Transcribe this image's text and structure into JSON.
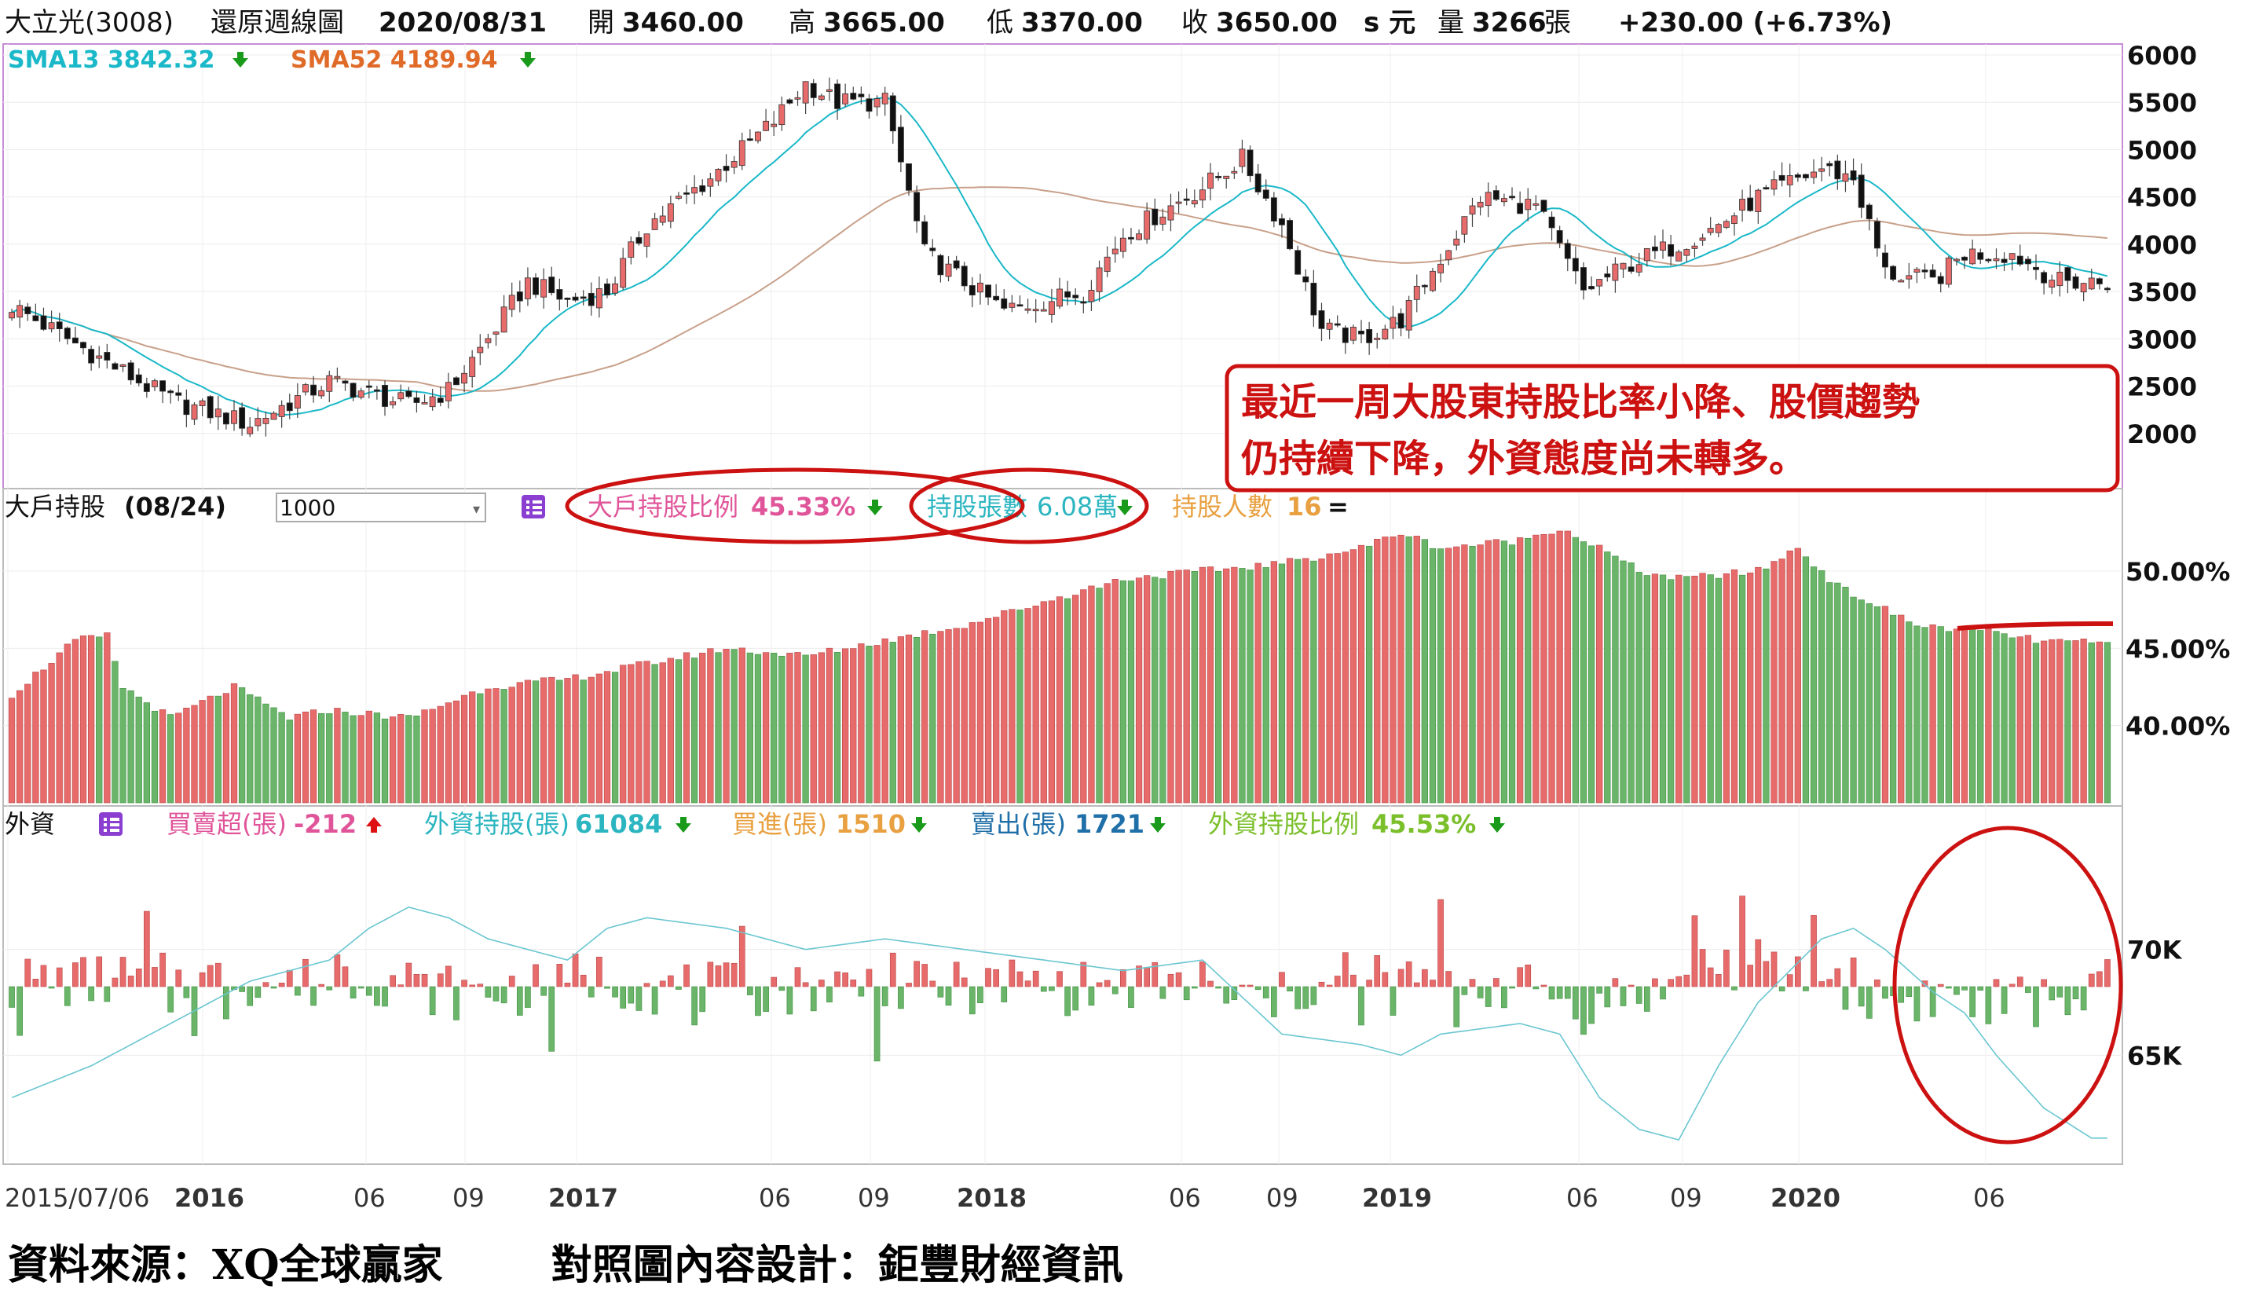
{
  "header": {
    "stock_name": "大立光(3008)",
    "chart_kind": "還原週線圖",
    "date": "2020/08/31",
    "open_label": "開",
    "open": "3460.00",
    "high_label": "高",
    "high": "3665.00",
    "low_label": "低",
    "low": "3370.00",
    "close_label": "收",
    "close": "3650.00",
    "close_unit": "s 元",
    "volume_label": "量",
    "volume": "3266",
    "volume_unit": "張",
    "change": "+230.00 (+6.73%)"
  },
  "price_panel": {
    "sma13_label": "SMA13 3842.32",
    "sma52_label": "SMA52 4189.94",
    "y_ticks": [
      "6000",
      "5500",
      "5000",
      "4500",
      "4000",
      "3500",
      "3000",
      "2500",
      "2000"
    ],
    "annotation_line1": "最近一周大股東持股比率小降、股價趨勢",
    "annotation_line2": "仍持續下降，外資態度尚未轉多。"
  },
  "holder_panel": {
    "title": "大戶持股",
    "date": "(08/24)",
    "threshold_input": "1000",
    "ratio_label": "大戶持股比例",
    "ratio_value": "45.33%",
    "shares_label": "持股張數",
    "shares_value": "6.08萬",
    "count_label": "持股人數",
    "count_value": "16",
    "count_trend": "=",
    "y_ticks": [
      "50.00%",
      "45.00%",
      "40.00%"
    ]
  },
  "foreign_panel": {
    "title": "外資",
    "net_label": "買賣超(張)",
    "net_value": "-212",
    "holding_label": "外資持股(張)",
    "holding_value": "61084",
    "buy_label": "買進(張)",
    "buy_value": "1510",
    "sell_label": "賣出(張)",
    "sell_value": "1721",
    "ratio_label": "外資持股比例",
    "ratio_value": "45.53%",
    "y_ticks": [
      "70K",
      "65K"
    ]
  },
  "x_axis": {
    "labels": [
      "2015/07/06",
      "2016",
      "06",
      "09",
      "2017",
      "06",
      "09",
      "2018",
      "06",
      "09",
      "2019",
      "06",
      "09",
      "2020",
      "06"
    ]
  },
  "footer": {
    "source": "資料來源：XQ全球贏家",
    "design": "對照圖內容設計：鉅豐財經資訊"
  },
  "colors": {
    "up": "#e86b6b",
    "down": "#6ab56a",
    "sma13": "#1ab8c8",
    "sma52": "#c8a08a",
    "annotation": "#cc1111",
    "ratio_text": "#e0559a",
    "shares_text": "#2bb5c0",
    "count_text": "#e8a040",
    "arrow_down": "#1a9a1a",
    "arrow_up": "#dd1111"
  },
  "chart_data": [
    {
      "type": "candlestick",
      "title": "大立光(3008) 還原週線圖",
      "ylim": [
        1500,
        6000
      ],
      "x_range": [
        "2015/07/06",
        "2020/08/31"
      ],
      "series": [
        {
          "name": "SMA13",
          "last": 3842.32
        },
        {
          "name": "SMA52",
          "last": 4189.94
        }
      ],
      "candle_path": [
        [
          0,
          3350
        ],
        [
          10,
          2850
        ],
        [
          20,
          2350
        ],
        [
          30,
          2100
        ],
        [
          40,
          2550
        ],
        [
          50,
          2300
        ],
        [
          55,
          2450
        ],
        [
          60,
          3000
        ],
        [
          65,
          3600
        ],
        [
          70,
          3400
        ],
        [
          75,
          3500
        ],
        [
          80,
          4200
        ],
        [
          88,
          4700
        ],
        [
          96,
          5300
        ],
        [
          100,
          5700
        ],
        [
          104,
          5500
        ],
        [
          110,
          5500
        ],
        [
          115,
          3900
        ],
        [
          125,
          3300
        ],
        [
          135,
          3500
        ],
        [
          140,
          4100
        ],
        [
          150,
          4600
        ],
        [
          155,
          4900
        ],
        [
          160,
          4200
        ],
        [
          165,
          3100
        ],
        [
          170,
          3000
        ],
        [
          175,
          3200
        ],
        [
          185,
          4500
        ],
        [
          192,
          4400
        ],
        [
          198,
          3500
        ],
        [
          204,
          3800
        ],
        [
          210,
          4000
        ],
        [
          215,
          4200
        ],
        [
          220,
          4500
        ],
        [
          228,
          4800
        ],
        [
          232,
          4700
        ],
        [
          236,
          3700
        ],
        [
          242,
          3600
        ],
        [
          246,
          3900
        ],
        [
          252,
          3900
        ],
        [
          258,
          3600
        ]
      ],
      "last_candle": {
        "date": "2020/08/31",
        "open": 3460,
        "high": 3665,
        "low": 3370,
        "close": 3650
      }
    },
    {
      "type": "bar",
      "title": "大戶持股",
      "ylabel": "大戶持股比例",
      "ylim": [
        35,
        53
      ],
      "path": [
        [
          0,
          42.0
        ],
        [
          8,
          45.5
        ],
        [
          12,
          45.8
        ],
        [
          14,
          42.5
        ],
        [
          20,
          40.5
        ],
        [
          28,
          42.5
        ],
        [
          35,
          40.5
        ],
        [
          40,
          41.0
        ],
        [
          50,
          40.5
        ],
        [
          60,
          42.5
        ],
        [
          70,
          43.0
        ],
        [
          80,
          44.0
        ],
        [
          90,
          45.0
        ],
        [
          100,
          44.5
        ],
        [
          110,
          45.5
        ],
        [
          120,
          46.5
        ],
        [
          130,
          48.0
        ],
        [
          140,
          49.5
        ],
        [
          150,
          50.0
        ],
        [
          160,
          50.5
        ],
        [
          170,
          51.5
        ],
        [
          175,
          52.5
        ],
        [
          180,
          51.5
        ],
        [
          190,
          52.0
        ],
        [
          195,
          52.8
        ],
        [
          200,
          51.5
        ],
        [
          205,
          50.0
        ],
        [
          210,
          49.5
        ],
        [
          220,
          50.0
        ],
        [
          225,
          51.5
        ],
        [
          230,
          49.0
        ],
        [
          240,
          46.5
        ],
        [
          250,
          46.0
        ],
        [
          255,
          45.5
        ],
        [
          264,
          45.3
        ]
      ],
      "last": 45.33
    },
    {
      "type": "bar",
      "title": "外資",
      "series": [
        {
          "name": "買賣超(張)",
          "last": -212
        },
        {
          "name": "外資持股(張)",
          "last": 61084
        }
      ],
      "holding_path": [
        [
          0,
          63000
        ],
        [
          10,
          64500
        ],
        [
          20,
          66500
        ],
        [
          30,
          68500
        ],
        [
          40,
          69500
        ],
        [
          45,
          71000
        ],
        [
          50,
          72000
        ],
        [
          55,
          71500
        ],
        [
          60,
          70500
        ],
        [
          65,
          70000
        ],
        [
          70,
          69500
        ],
        [
          75,
          71000
        ],
        [
          80,
          71500
        ],
        [
          90,
          71000
        ],
        [
          100,
          70000
        ],
        [
          110,
          70500
        ],
        [
          120,
          70000
        ],
        [
          130,
          69500
        ],
        [
          140,
          69000
        ],
        [
          150,
          69500
        ],
        [
          160,
          66000
        ],
        [
          170,
          65500
        ],
        [
          175,
          65000
        ],
        [
          180,
          66000
        ],
        [
          190,
          66500
        ],
        [
          195,
          66000
        ],
        [
          200,
          63000
        ],
        [
          205,
          61500
        ],
        [
          210,
          61000
        ],
        [
          215,
          64500
        ],
        [
          220,
          67500
        ],
        [
          228,
          70500
        ],
        [
          232,
          71000
        ],
        [
          236,
          70000
        ],
        [
          242,
          68000
        ],
        [
          246,
          67000
        ],
        [
          250,
          65000
        ],
        [
          256,
          62500
        ],
        [
          262,
          61084
        ]
      ]
    }
  ]
}
